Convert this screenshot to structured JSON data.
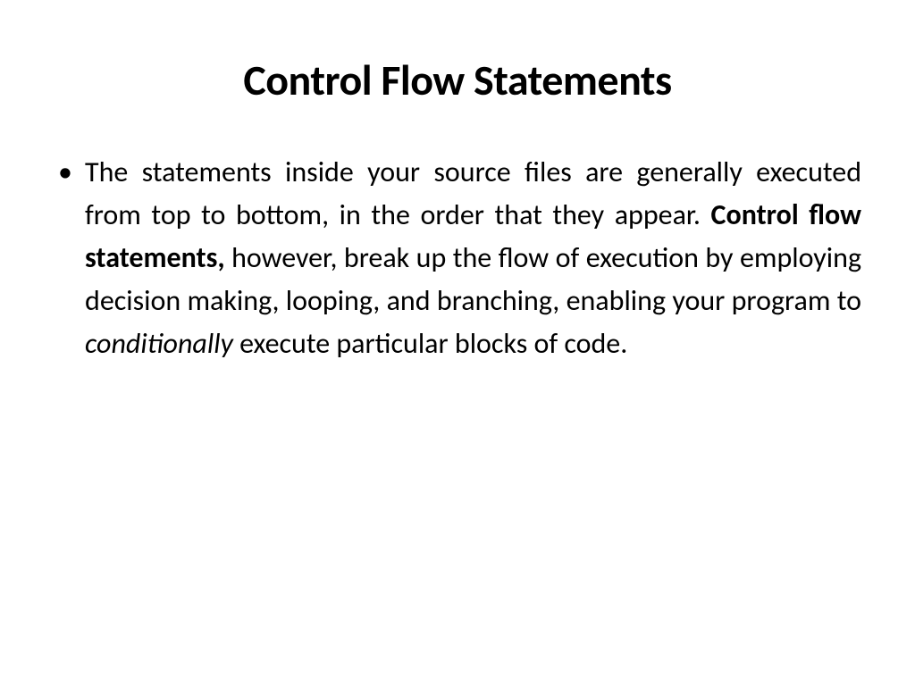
{
  "slide": {
    "title": "Control Flow Statements",
    "background_color": "#ffffff",
    "text_color": "#000000",
    "title_fontsize": 48,
    "title_fontweight": 700,
    "body_fontsize": 32,
    "body_lineheight": 1.5,
    "bullet": {
      "text_before_bold": "The statements inside your source files are generally executed from top to bottom, in the order that they appear. ",
      "bold_text": "Control flow statements,",
      "text_after_bold": " however, break up the flow of execution by employing decision making, looping, and branching, enabling your program to ",
      "italic_text": "conditionally",
      "text_after_italic": " execute particular blocks of code."
    }
  }
}
